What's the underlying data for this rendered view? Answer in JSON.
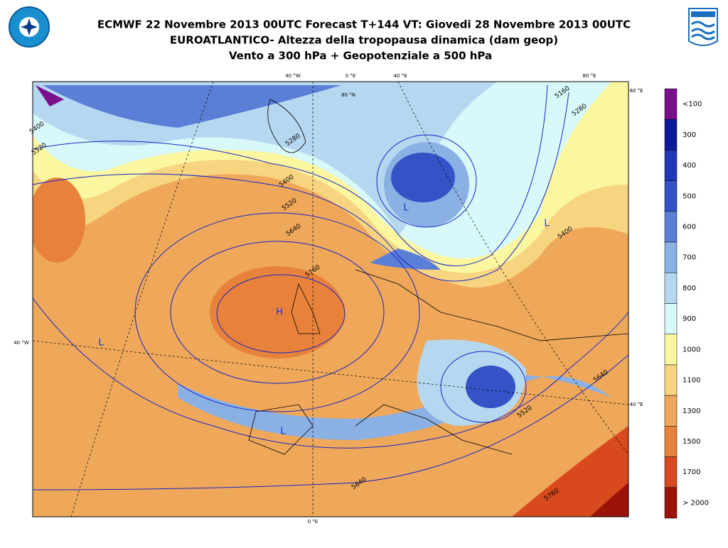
{
  "header": {
    "title_lines": [
      "ECMWF 22 Novembre 2013 00UTC Forecast T+144 VT: Giovedi 28 Novembre 2013 00UTC",
      "EUROATLANTICO- Altezza della tropopausa dinamica (dam geop)",
      "Vento a 300 hPa   +  Geopotenziale a 500 hPa"
    ]
  },
  "legend": {
    "labels": [
      "<100",
      "300",
      "400",
      "500",
      "600",
      "700",
      "800",
      "900",
      "1000",
      "1100",
      "1300",
      "1500",
      "1700",
      "> 2000"
    ],
    "colors": [
      "#7a0f8c",
      "#10189a",
      "#1f36b8",
      "#3553c6",
      "#5b7fd6",
      "#8ab0e4",
      "#b5d8f0",
      "#d8f8fa",
      "#fbf7a0",
      "#f6d480",
      "#efa85a",
      "#e8823a",
      "#d84a1e",
      "#9a1208"
    ]
  },
  "map": {
    "coord_labels": [
      "40 °W",
      "0 °E",
      "40 °E",
      "80 °E",
      "80 °E",
      "40 °E",
      "40 °W",
      "0 °E",
      "80 °N"
    ],
    "contour_labels": [
      "5400",
      "5520",
      "5640",
      "5760",
      "5280",
      "5160",
      "5400",
      "5520",
      "5640",
      "5640",
      "5760",
      "5280",
      "5400",
      "5520"
    ],
    "pressure_centers": [
      "H",
      "L",
      "L",
      "L",
      "L"
    ]
  }
}
